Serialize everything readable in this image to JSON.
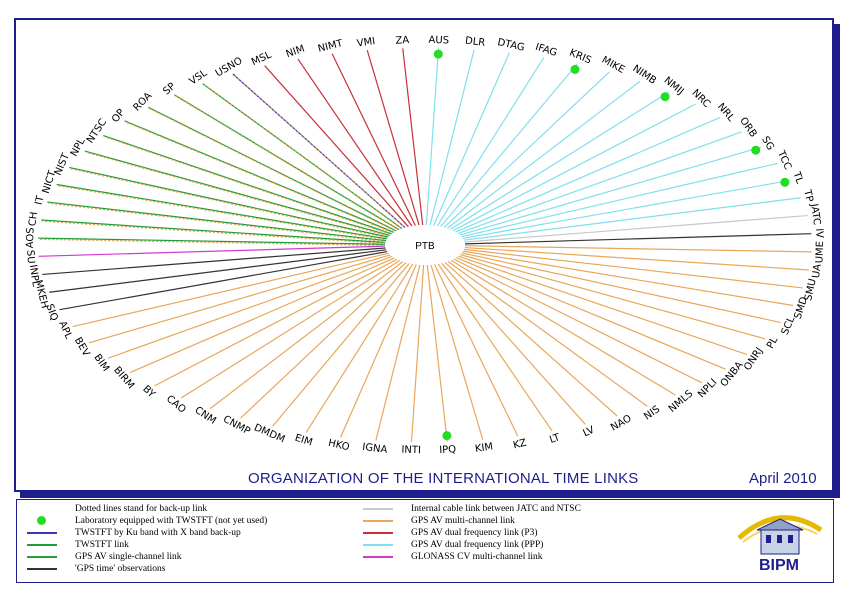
{
  "title": "ORGANIZATION  OF  THE INTERNATIONAL TIME LINKS",
  "date": "April 2010",
  "center_label": "PTB",
  "colors": {
    "twstft": "#1f9d3a",
    "ku_x": "#3a37b8",
    "gps_sc": "#2f9a3a",
    "gps_time": "#333333",
    "cable": "#c8c8c8",
    "gps_mc": "#e8a75a",
    "p3": "#c8303a",
    "ppp": "#7fe0ec",
    "glonass": "#d23ac8",
    "frame": "#1e1e8c",
    "dot": "#22dd22"
  },
  "labs": [
    {
      "name": "AUS",
      "link": "ppp",
      "twstft": true
    },
    {
      "name": "DLR",
      "link": "ppp"
    },
    {
      "name": "DTAG",
      "link": "ppp"
    },
    {
      "name": "IFAG",
      "link": "ppp"
    },
    {
      "name": "KRIS",
      "link": "ppp",
      "twstft": true
    },
    {
      "name": "MIKE",
      "link": "ppp"
    },
    {
      "name": "NIMB",
      "link": "ppp"
    },
    {
      "name": "NMIJ",
      "link": "ppp",
      "twstft": true
    },
    {
      "name": "NRC",
      "link": "ppp"
    },
    {
      "name": "NRL",
      "link": "ppp"
    },
    {
      "name": "ORB",
      "link": "ppp"
    },
    {
      "name": "SG",
      "link": "ppp",
      "twstft": true
    },
    {
      "name": "TCC",
      "link": "ppp"
    },
    {
      "name": "TL",
      "link": "ppp",
      "twstft": true
    },
    {
      "name": "TP",
      "link": "ppp"
    },
    {
      "name": "JATC",
      "link": "cable"
    },
    {
      "name": "IV",
      "link": "gps_time"
    },
    {
      "name": "UME",
      "link": "gps_mc"
    },
    {
      "name": "UA",
      "link": "gps_mc"
    },
    {
      "name": "SMU",
      "link": "gps_mc"
    },
    {
      "name": "SMD",
      "link": "gps_mc"
    },
    {
      "name": "SCL",
      "link": "gps_mc"
    },
    {
      "name": "PL",
      "link": "gps_mc"
    },
    {
      "name": "ONRJ",
      "link": "gps_mc"
    },
    {
      "name": "ONBA",
      "link": "gps_mc"
    },
    {
      "name": "NPLI",
      "link": "gps_mc"
    },
    {
      "name": "NMLS",
      "link": "gps_mc"
    },
    {
      "name": "NIS",
      "link": "gps_mc"
    },
    {
      "name": "NAO",
      "link": "gps_mc"
    },
    {
      "name": "LV",
      "link": "gps_mc"
    },
    {
      "name": "LT",
      "link": "gps_mc"
    },
    {
      "name": "KZ",
      "link": "gps_mc"
    },
    {
      "name": "KIM",
      "link": "gps_mc"
    },
    {
      "name": "IPQ",
      "link": "gps_mc",
      "twstft": true
    },
    {
      "name": "INTI",
      "link": "gps_mc"
    },
    {
      "name": "IGNA",
      "link": "gps_mc"
    },
    {
      "name": "HKO",
      "link": "gps_mc"
    },
    {
      "name": "EIM",
      "link": "gps_mc"
    },
    {
      "name": "DMDM",
      "link": "gps_mc"
    },
    {
      "name": "CNMP",
      "link": "gps_mc"
    },
    {
      "name": "CNM",
      "link": "gps_mc"
    },
    {
      "name": "CAO",
      "link": "gps_mc"
    },
    {
      "name": "BY",
      "link": "gps_mc"
    },
    {
      "name": "BIRM",
      "link": "gps_mc"
    },
    {
      "name": "BIM",
      "link": "gps_mc"
    },
    {
      "name": "BEV",
      "link": "gps_mc"
    },
    {
      "name": "APL",
      "link": "gps_mc"
    },
    {
      "name": "SIQ",
      "link": "gps_time"
    },
    {
      "name": "MKEH",
      "link": "gps_time"
    },
    {
      "name": "INPL",
      "link": "gps_time"
    },
    {
      "name": "SU",
      "link": "glonass"
    },
    {
      "name": "AOS",
      "link": "twstft",
      "backup": true
    },
    {
      "name": "CH",
      "link": "twstft",
      "backup": true
    },
    {
      "name": "IT",
      "link": "twstft",
      "backup": true
    },
    {
      "name": "NICT",
      "link": "twstft",
      "backup": true
    },
    {
      "name": "NIST",
      "link": "twstft",
      "backup": true
    },
    {
      "name": "NPL",
      "link": "twstft",
      "backup": true
    },
    {
      "name": "NTSC",
      "link": "twstft",
      "backup": true
    },
    {
      "name": "OP",
      "link": "twstft",
      "backup": true
    },
    {
      "name": "ROA",
      "link": "twstft",
      "backup": true
    },
    {
      "name": "SP",
      "link": "twstft",
      "backup": true
    },
    {
      "name": "VSL",
      "link": "twstft",
      "backup": true
    },
    {
      "name": "USNO",
      "link": "ku_x",
      "backup": true
    },
    {
      "name": "MSL",
      "link": "p3"
    },
    {
      "name": "NIM",
      "link": "p3"
    },
    {
      "name": "NIMT",
      "link": "p3"
    },
    {
      "name": "VMI",
      "link": "p3"
    },
    {
      "name": "ZA",
      "link": "p3"
    }
  ],
  "legend": {
    "left": [
      {
        "type": "dot",
        "label": "Dotted lines stand for back-up link",
        "color_key": "none"
      },
      {
        "type": "dot",
        "label": "Laboratory equipped with TWSTFT (not yet used)",
        "color_key": "dot"
      },
      {
        "type": "line",
        "label": "TWSTFT by Ku band with X band back-up",
        "color_key": "ku_x"
      },
      {
        "type": "line",
        "label": "TWSTFT link",
        "color_key": "twstft"
      },
      {
        "type": "line",
        "label": "GPS AV single-channel link",
        "color_key": "gps_sc"
      },
      {
        "type": "line",
        "label": "'GPS time' observations",
        "color_key": "gps_time"
      }
    ],
    "right": [
      {
        "type": "line",
        "label": "Internal cable link between JATC and NTSC",
        "color_key": "cable"
      },
      {
        "type": "line",
        "label": "GPS AV multi-channel link",
        "color_key": "gps_mc"
      },
      {
        "type": "line",
        "label": "GPS AV dual frequency link (P3)",
        "color_key": "p3"
      },
      {
        "type": "line",
        "label": "GPS AV dual frequency link (PPP)",
        "color_key": "ppp"
      },
      {
        "type": "line",
        "label": "GLONASS CV multi-channel link",
        "color_key": "glonass"
      }
    ]
  },
  "logo_text": "BIPM"
}
